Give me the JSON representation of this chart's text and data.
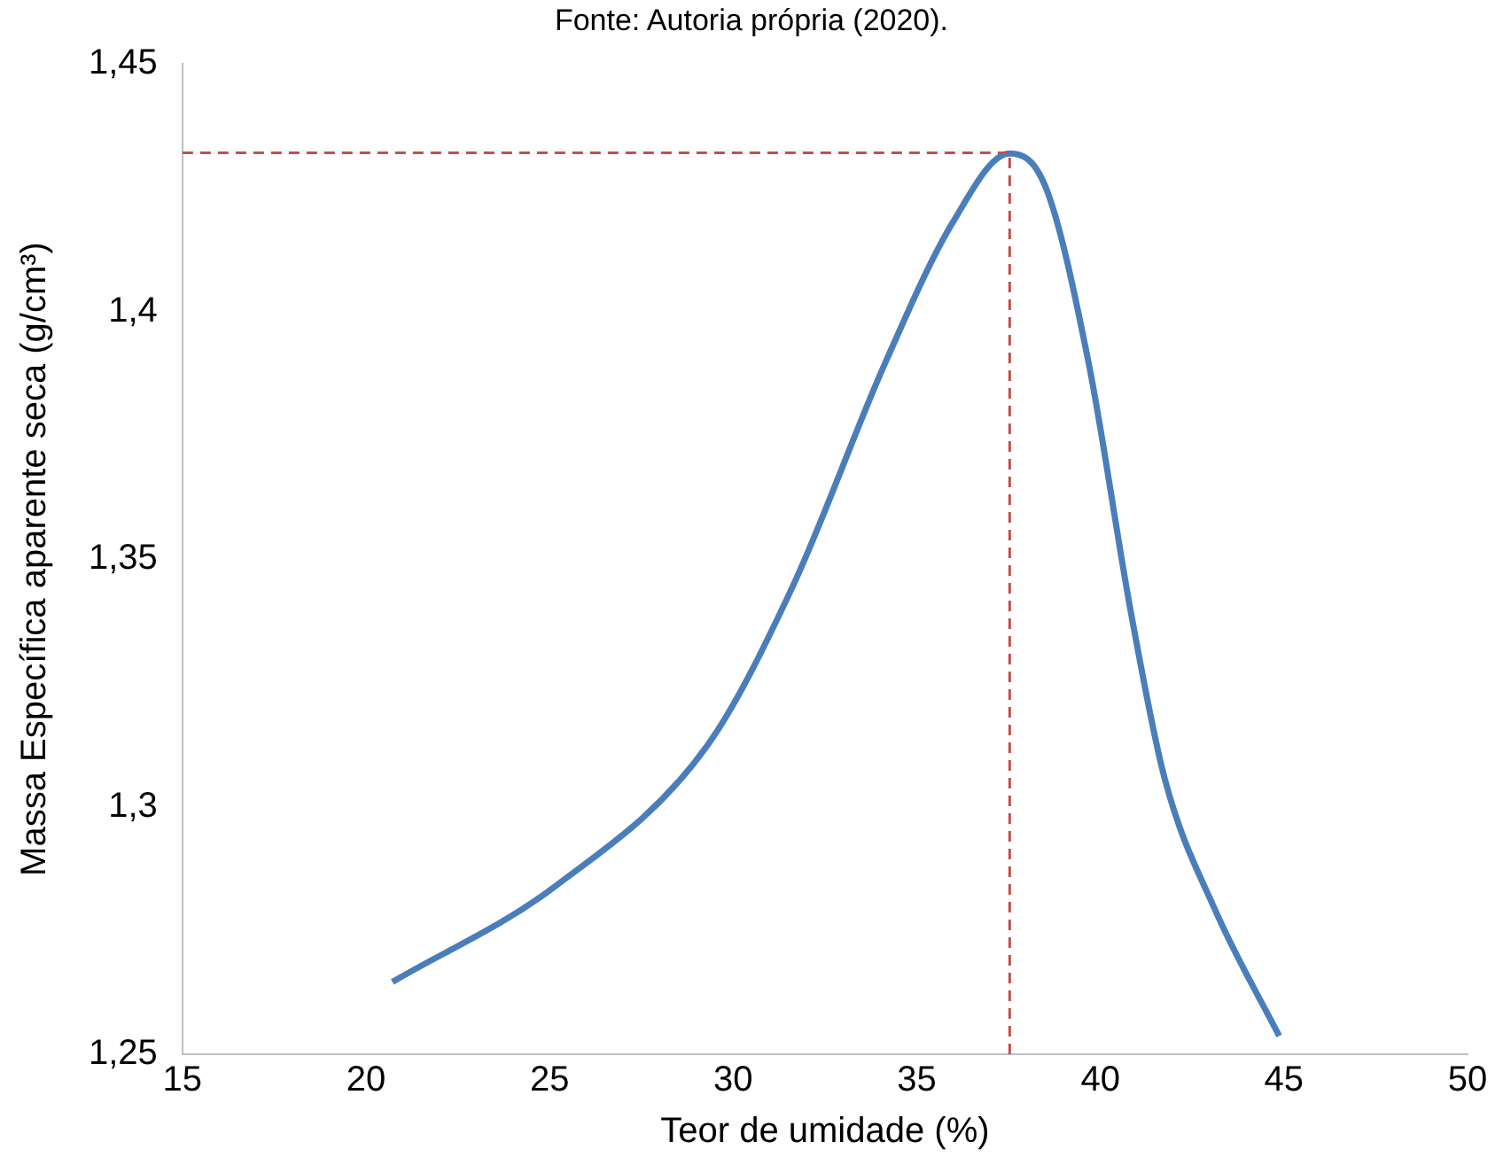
{
  "chart_data": {
    "type": "line",
    "title": "Fonte: Autoria própria (2020).",
    "xlabel": "Teor de umidade (%)",
    "ylabel": "Massa Específica aparente seca (g/cm³)",
    "series": [
      {
        "color": "#4a7ebb",
        "x": [
          20.72,
          25.15,
          29.3,
          31.61,
          34.14,
          35.99,
          37.53,
          38.52,
          39.68,
          40.83,
          41.75,
          43.14,
          44.87
        ],
        "values": [
          1.2646,
          1.2839,
          1.3124,
          1.3443,
          1.3896,
          1.4181,
          1.4319,
          1.4249,
          1.3896,
          1.3393,
          1.3057,
          1.2789,
          1.2537
        ]
      }
    ],
    "xlim": [
      15,
      50
    ],
    "xticks": [
      15,
      20,
      25,
      30,
      35,
      40,
      45,
      50
    ],
    "ylim": [
      1.25,
      1.45
    ],
    "yticks": [
      {
        "value": 1.25,
        "label": "1,25"
      },
      {
        "value": 1.3,
        "label": "1,3"
      },
      {
        "value": 1.35,
        "label": "1,35"
      },
      {
        "value": 1.4,
        "label": "1,4"
      },
      {
        "value": 1.45,
        "label": "1,45"
      }
    ],
    "ref_lines": [
      {
        "axis": "y",
        "value": 1.432,
        "color": "#c0504d",
        "line_style": "dashed"
      },
      {
        "axis": "x",
        "value": 37.53,
        "color": "#c0504d",
        "line_style": "dashed"
      }
    ],
    "grid": false,
    "legend": false,
    "marker": "none",
    "line_style": "solid"
  }
}
